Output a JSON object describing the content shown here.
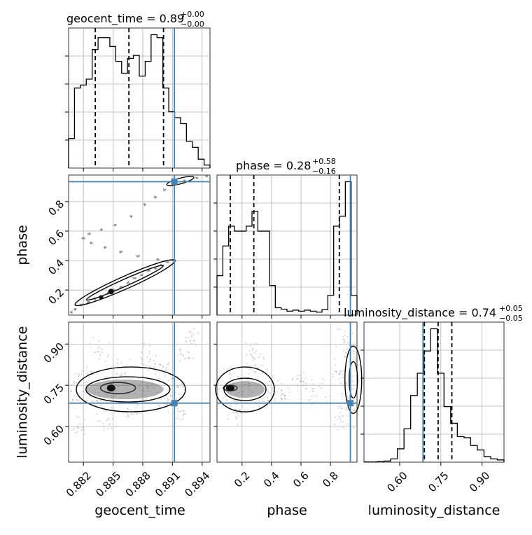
{
  "chart_data": {
    "type": "corner",
    "parameters": [
      "geocent_time",
      "phase",
      "luminosity_distance"
    ],
    "colors": {
      "truth": "#4682b4",
      "hist": "#000000",
      "grid": "#b0b0b0",
      "scatter": "#555555"
    },
    "grid": true,
    "titles": [
      {
        "param": "geocent_time",
        "label": "geocent_time = 0.89",
        "plus": "+0.00",
        "minus": "−0.00"
      },
      {
        "param": "phase",
        "label": "phase = 0.28",
        "plus": "+0.58",
        "minus": "−0.16"
      },
      {
        "param": "luminosity_distance",
        "label": "luminosity_distance = 0.74",
        "plus": "+0.05",
        "minus": "−0.05"
      }
    ],
    "axis_labels": {
      "geocent_time": "geocent_time",
      "phase": "phase",
      "luminosity_distance": "luminosity_distance"
    },
    "ranges": {
      "geocent_time": [
        0.8805,
        0.8948
      ],
      "phase": [
        0.03,
        0.98
      ],
      "luminosity_distance": [
        0.47,
        0.98
      ]
    },
    "ticks": {
      "geocent_time": [
        0.882,
        0.885,
        0.888,
        0.891,
        0.894
      ],
      "geocent_time_labels": [
        "0.882",
        "0.885",
        "0.888",
        "0.891",
        "0.894"
      ],
      "phase_y": [
        0.2,
        0.4,
        0.6,
        0.8
      ],
      "phase_y_labels": [
        "0.2",
        "0.4",
        "0.6",
        "0.8"
      ],
      "phase_x": [
        0.2,
        0.4,
        0.6,
        0.8
      ],
      "phase_x_labels": [
        "0.2",
        "0.4",
        "0.6",
        "0.8"
      ],
      "luminosity_distance": [
        0.6,
        0.75,
        0.9
      ],
      "luminosity_distance_labels": [
        "0.60",
        "0.75",
        "0.90"
      ]
    },
    "truths": {
      "geocent_time": 0.8912,
      "phase": 0.935,
      "luminosity_distance": 0.685
    },
    "quantiles": {
      "geocent_time": [
        0.8832,
        0.8866,
        0.8901
      ],
      "phase": [
        0.12,
        0.28,
        0.86
      ],
      "luminosity_distance": [
        0.69,
        0.74,
        0.79
      ]
    },
    "hist_1d": {
      "geocent_time": {
        "range": [
          0.8805,
          0.8948
        ],
        "counts": [
          10,
          27,
          28,
          30,
          40,
          44,
          44,
          41,
          36,
          32,
          37,
          38,
          31,
          36,
          45,
          44,
          27,
          19,
          17,
          15,
          9,
          7,
          3,
          1
        ]
      },
      "phase": {
        "range": [
          0.03,
          0.98
        ],
        "counts": [
          8,
          14,
          18,
          17,
          17,
          18,
          21,
          17,
          17,
          6,
          1.5,
          1.2,
          0.8,
          1,
          0.8,
          1,
          0.8,
          0.6,
          1.1,
          4,
          18,
          20,
          27,
          4
        ]
      },
      "luminosity_distance": {
        "range": [
          0.47,
          0.98
        ],
        "counts": [
          0.02,
          0.02,
          0.05,
          0.1,
          0.3,
          1.2,
          3,
          6,
          8,
          10,
          12,
          8,
          5,
          3.5,
          2.3,
          2.2,
          1.5,
          1.1,
          0.5,
          0.3,
          0.2
        ]
      }
    },
    "scatter_samples": {
      "geocent_time_vs_phase": [
        [
          0.8808,
          0.05
        ],
        [
          0.8812,
          0.07
        ],
        [
          0.8818,
          0.1
        ],
        [
          0.8825,
          0.12
        ],
        [
          0.8832,
          0.14
        ],
        [
          0.8838,
          0.16
        ],
        [
          0.8845,
          0.18
        ],
        [
          0.8851,
          0.2
        ],
        [
          0.8858,
          0.22
        ],
        [
          0.8865,
          0.25
        ],
        [
          0.8872,
          0.28
        ],
        [
          0.8879,
          0.3
        ],
        [
          0.8886,
          0.33
        ],
        [
          0.8893,
          0.35
        ],
        [
          0.8899,
          0.37
        ],
        [
          0.8905,
          0.39
        ],
        [
          0.8912,
          0.4
        ],
        [
          0.8895,
          0.41
        ],
        [
          0.8875,
          0.43
        ],
        [
          0.8858,
          0.46
        ],
        [
          0.8842,
          0.49
        ],
        [
          0.8828,
          0.52
        ],
        [
          0.882,
          0.55
        ],
        [
          0.8826,
          0.58
        ],
        [
          0.8838,
          0.61
        ],
        [
          0.8852,
          0.64
        ],
        [
          0.8868,
          0.7
        ],
        [
          0.8882,
          0.78
        ],
        [
          0.8893,
          0.83
        ],
        [
          0.8902,
          0.88
        ],
        [
          0.8912,
          0.92
        ],
        [
          0.8922,
          0.94
        ],
        [
          0.8935,
          0.96
        ],
        [
          0.8945,
          0.975
        ]
      ],
      "geocent_time_vs_luminosity_distance": [
        [
          0.8812,
          0.72
        ],
        [
          0.8822,
          0.78
        ],
        [
          0.8835,
          0.69
        ],
        [
          0.8848,
          0.74
        ],
        [
          0.8858,
          0.8
        ],
        [
          0.8868,
          0.66
        ],
        [
          0.8878,
          0.72
        ],
        [
          0.8888,
          0.77
        ],
        [
          0.8898,
          0.82
        ],
        [
          0.8905,
          0.7
        ],
        [
          0.8915,
          0.75
        ],
        [
          0.8925,
          0.86
        ],
        [
          0.893,
          0.93
        ],
        [
          0.8918,
          0.64
        ],
        [
          0.8845,
          0.62
        ],
        [
          0.8882,
          0.85
        ],
        [
          0.8818,
          0.6
        ],
        [
          0.8838,
          0.88
        ]
      ],
      "phase_vs_luminosity_distance": [
        [
          0.06,
          0.73
        ],
        [
          0.12,
          0.78
        ],
        [
          0.18,
          0.69
        ],
        [
          0.24,
          0.75
        ],
        [
          0.3,
          0.81
        ],
        [
          0.36,
          0.7
        ],
        [
          0.42,
          0.74
        ],
        [
          0.5,
          0.72
        ],
        [
          0.6,
          0.76
        ],
        [
          0.7,
          0.73
        ],
        [
          0.85,
          0.8
        ],
        [
          0.9,
          0.92
        ],
        [
          0.94,
          0.68
        ],
        [
          0.96,
          0.87
        ],
        [
          0.88,
          0.62
        ],
        [
          0.15,
          0.64
        ],
        [
          0.27,
          0.86
        ],
        [
          0.92,
          0.75
        ]
      ]
    }
  }
}
